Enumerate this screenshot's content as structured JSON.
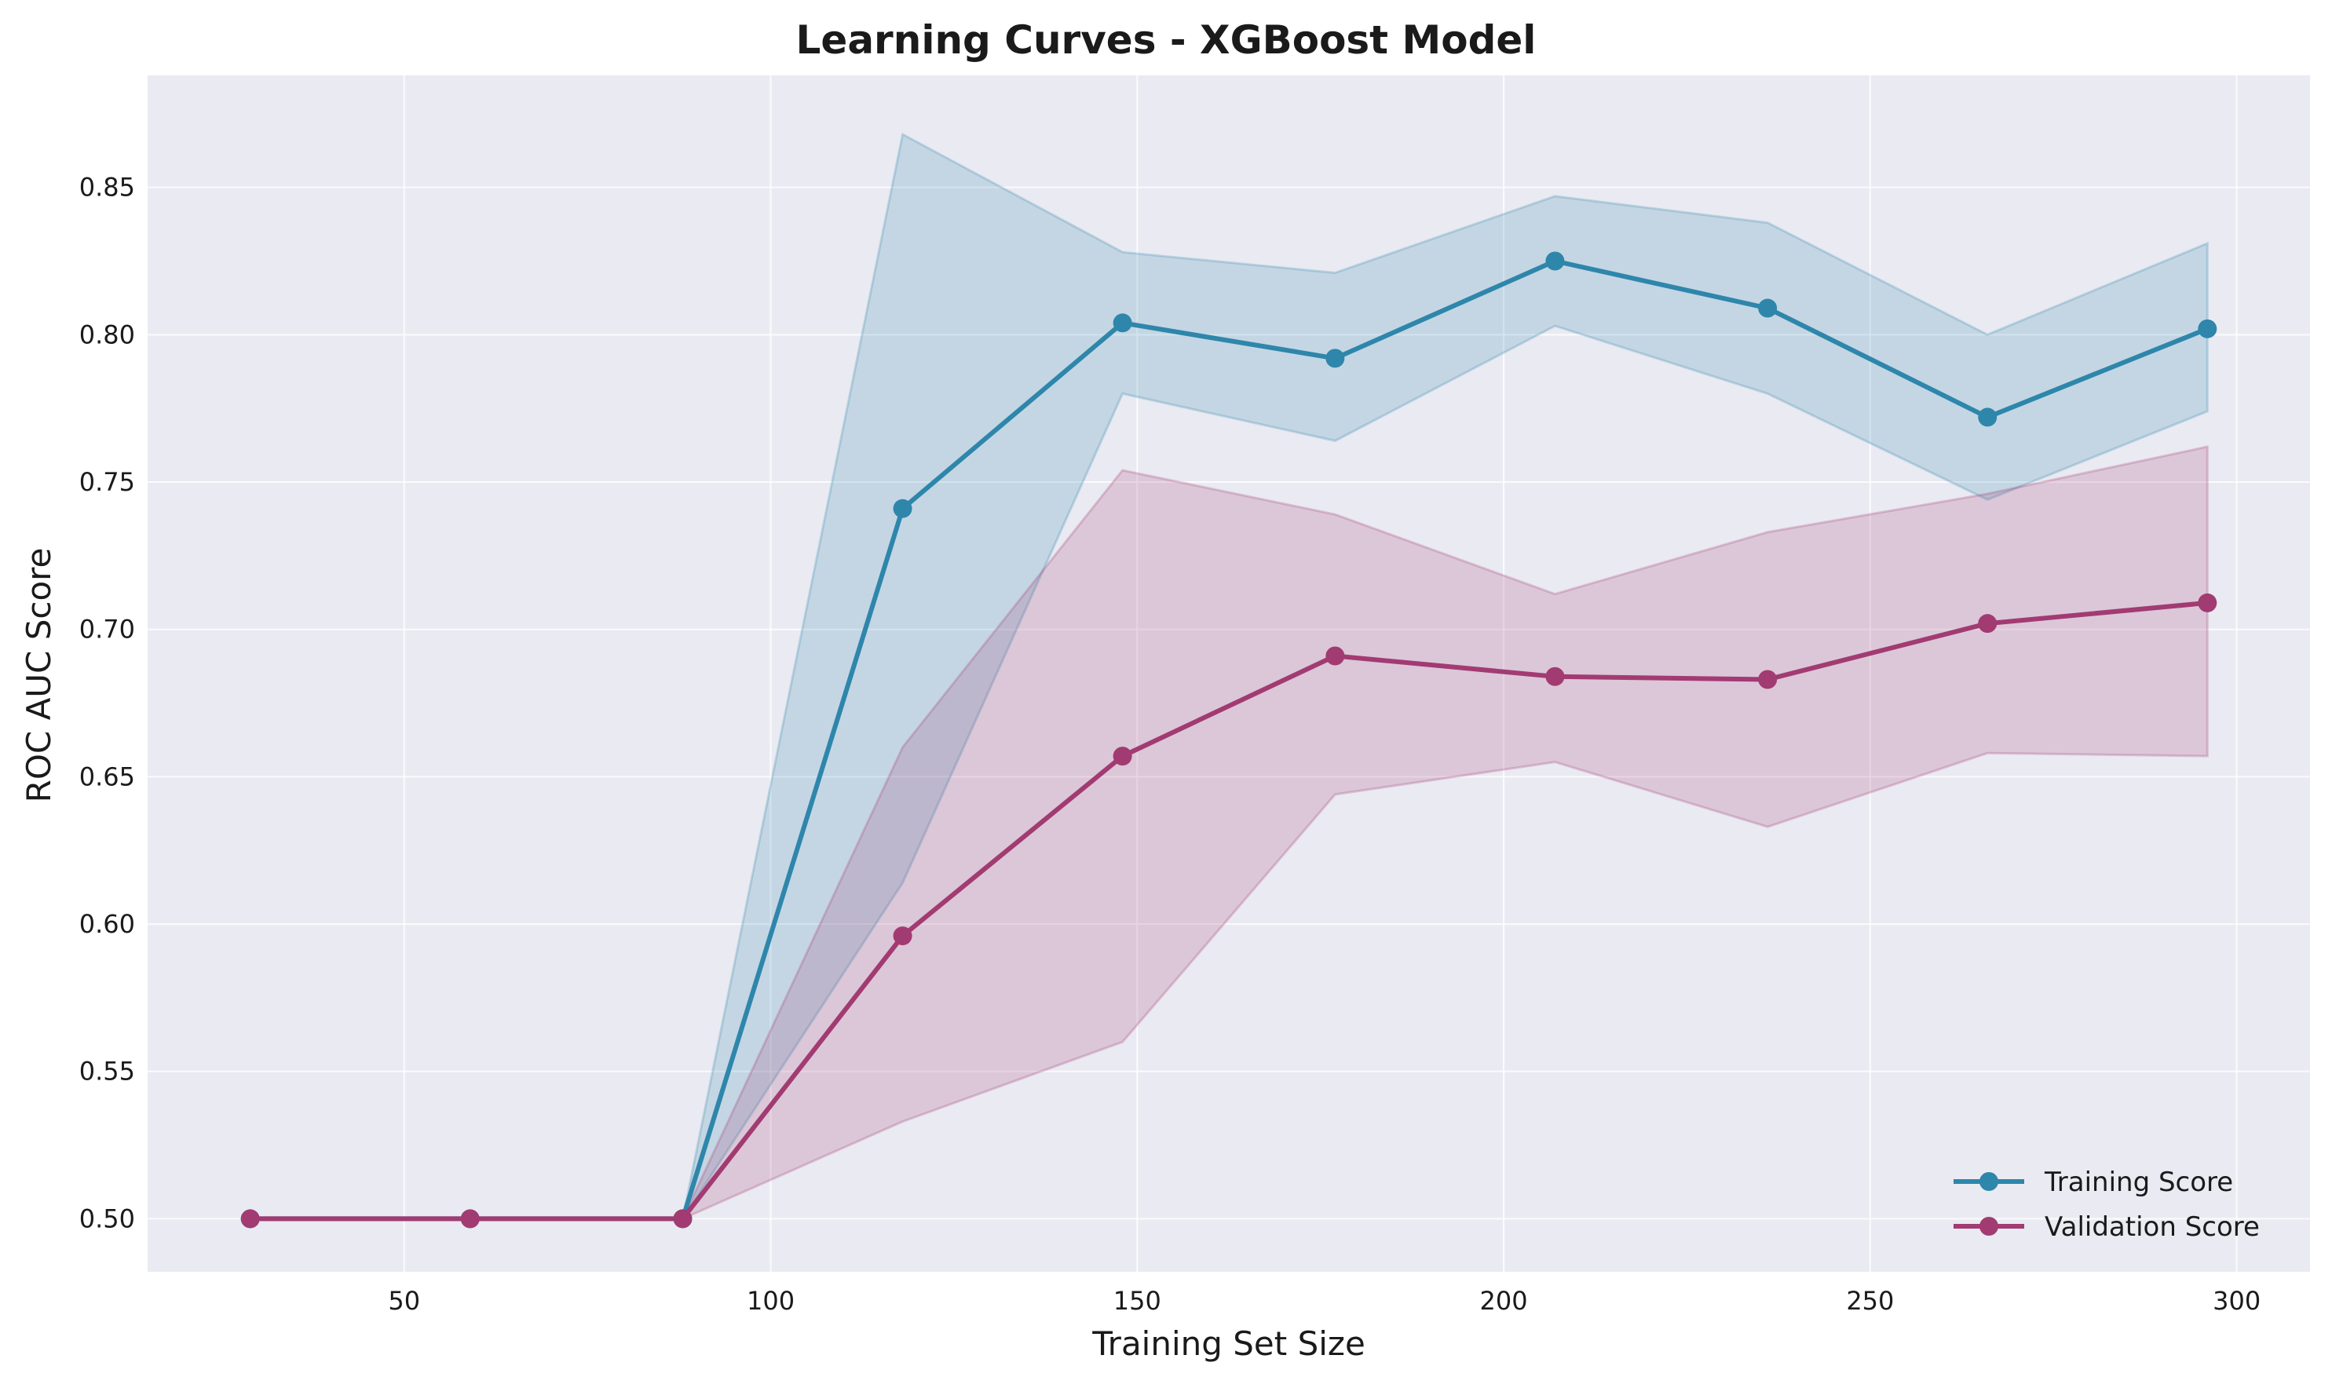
{
  "chart_data": {
    "type": "line",
    "title": "Learning Curves - XGBoost Model",
    "xlabel": "Training Set Size",
    "ylabel": "ROC AUC Score",
    "xlim": [
      15,
      310
    ],
    "ylim": [
      0.482,
      0.888
    ],
    "xticks": [
      50,
      100,
      150,
      200,
      250,
      300
    ],
    "yticks": [
      0.5,
      0.55,
      0.6,
      0.65,
      0.7,
      0.75,
      0.8,
      0.85
    ],
    "ytick_labels": [
      "0.50",
      "0.55",
      "0.60",
      "0.65",
      "0.70",
      "0.75",
      "0.80",
      "0.85"
    ],
    "grid": true,
    "legend_position": "lower-right",
    "x": [
      29,
      59,
      88,
      118,
      148,
      177,
      207,
      236,
      266,
      296
    ],
    "series": [
      {
        "name": "Training Score",
        "color": "#2e86ab",
        "values": [
          0.5,
          0.5,
          0.5,
          0.741,
          0.804,
          0.792,
          0.825,
          0.809,
          0.772,
          0.802
        ],
        "band_upper": [
          0.5,
          0.5,
          0.5,
          0.868,
          0.828,
          0.821,
          0.847,
          0.838,
          0.8,
          0.831
        ],
        "band_lower": [
          0.5,
          0.5,
          0.5,
          0.614,
          0.78,
          0.764,
          0.803,
          0.78,
          0.744,
          0.774
        ]
      },
      {
        "name": "Validation Score",
        "color": "#a23b72",
        "values": [
          0.5,
          0.5,
          0.5,
          0.596,
          0.657,
          0.691,
          0.684,
          0.683,
          0.702,
          0.709
        ],
        "band_upper": [
          0.5,
          0.5,
          0.5,
          0.66,
          0.754,
          0.739,
          0.712,
          0.733,
          0.746,
          0.762
        ],
        "band_lower": [
          0.5,
          0.5,
          0.5,
          0.533,
          0.56,
          0.644,
          0.655,
          0.633,
          0.658,
          0.657
        ]
      }
    ]
  }
}
